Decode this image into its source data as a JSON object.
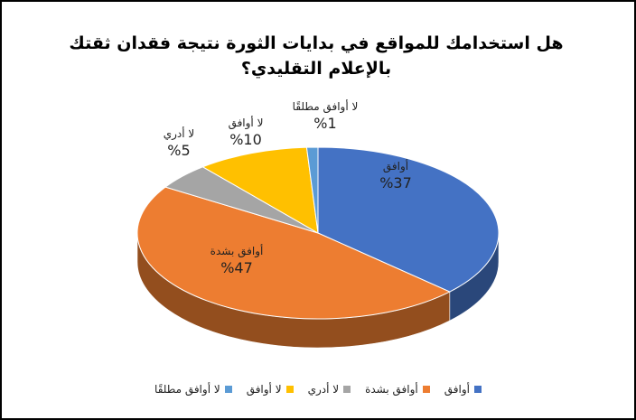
{
  "chart_data": {
    "type": "pie",
    "title": "هل استخدامك للمواقع في بدايات الثورة نتيجة فقدان ثقتك بالإعلام التقليدي؟",
    "slices": [
      {
        "label": "أوافق",
        "value": 37,
        "value_label": "%37",
        "color": "#4472C4"
      },
      {
        "label": "أوافق بشدة",
        "value": 47,
        "value_label": "%47",
        "color": "#ED7D31"
      },
      {
        "label": "لا أدري",
        "value": 5,
        "value_label": "%5",
        "color": "#A5A5A5"
      },
      {
        "label": "لا أوافق",
        "value": 10,
        "value_label": "%10",
        "color": "#FFC000"
      },
      {
        "label": "لا أوافق مطلقًا",
        "value": 1,
        "value_label": "%1",
        "color": "#5B9BD5"
      }
    ],
    "legend_position": "bottom",
    "style": "3d-pie"
  }
}
